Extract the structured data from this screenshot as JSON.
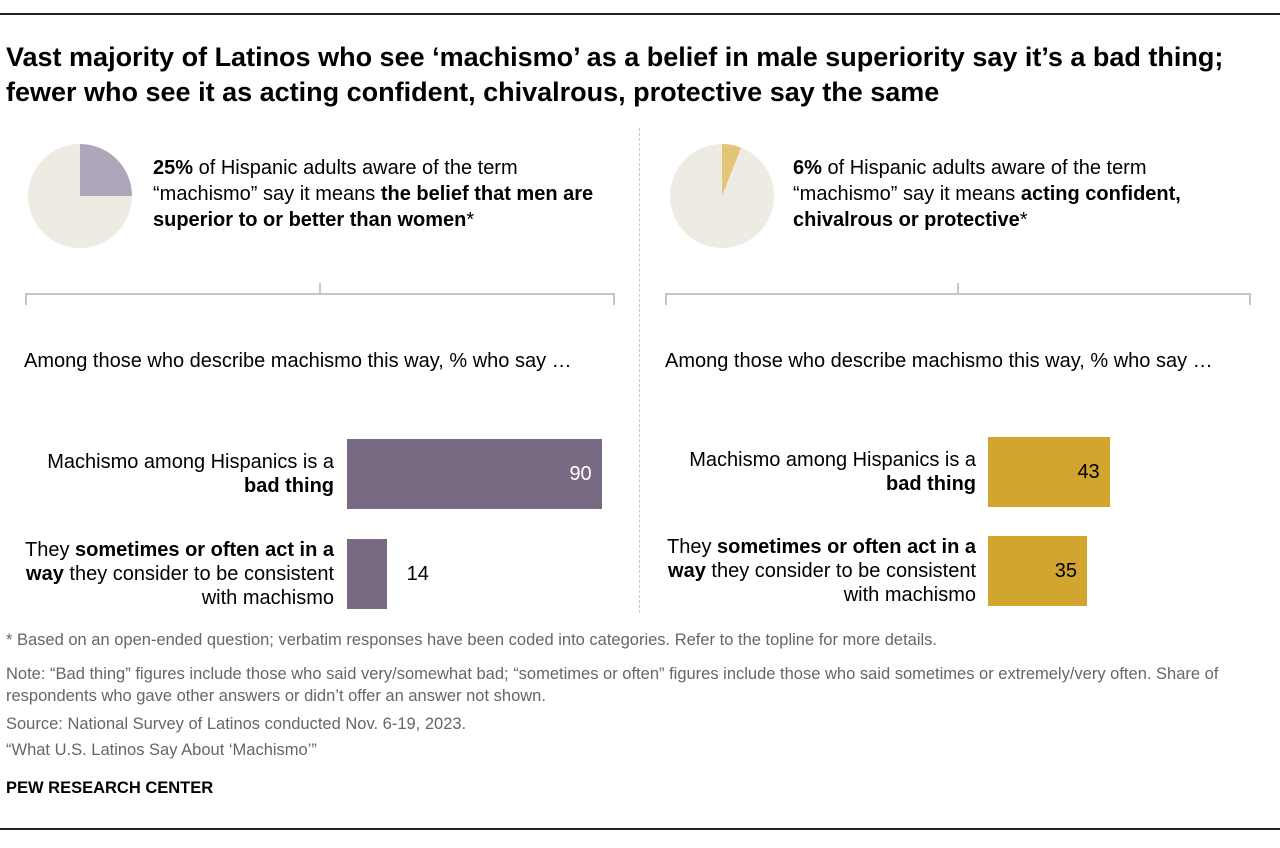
{
  "title": "Vast majority of Latinos who see ‘machismo’ as a belief in male superiority say it’s a bad thing; fewer who see it as acting confident, chivalrous, protective say the same",
  "colors": {
    "purple": "#786a82",
    "purple_light": "#b0a6bb",
    "gold": "#d1a52e",
    "gold_light": "#e2c577",
    "pie_bg": "#eeebe3",
    "brace": "#c6c6c6"
  },
  "chart_data": [
    {
      "type": "pie",
      "values": [
        25,
        75
      ],
      "description": {
        "pct": "25%",
        "pre": " of Hispanic adults aware of the term “machismo” say it means ",
        "bold": "the belief that men are superior to or better than women",
        "post": "*"
      }
    },
    {
      "type": "pie",
      "values": [
        6,
        94
      ],
      "description": {
        "pct": "6%",
        "pre": " of Hispanic adults aware of the term “machismo” say it means ",
        "bold": "acting confident, chivalrous or protective",
        "post": "*"
      }
    },
    {
      "type": "bar",
      "orientation": "horizontal",
      "subtitle": "Among those who describe machismo this way, % who say …",
      "categories": [
        {
          "pre": "Machismo among Hispanics is a ",
          "bold": "bad thing",
          "post": ""
        },
        {
          "pre": "They ",
          "bold": "sometimes or often act in a way",
          "post": " they consider to be consistent with machismo"
        }
      ],
      "values": [
        90,
        14
      ],
      "value_labels": [
        "90",
        "14"
      ],
      "xlim": [
        0,
        100
      ],
      "color": "#786a82"
    },
    {
      "type": "bar",
      "orientation": "horizontal",
      "subtitle": "Among those who describe machismo this way, % who say …",
      "categories": [
        {
          "pre": "Machismo among Hispanics is a ",
          "bold": "bad thing",
          "post": ""
        },
        {
          "pre": "They ",
          "bold": "sometimes or often act in a way",
          "post": " they consider to be consistent with machismo"
        }
      ],
      "values": [
        43,
        35
      ],
      "value_labels": [
        "43",
        "35"
      ],
      "xlim": [
        0,
        100
      ],
      "color": "#d1a52e"
    }
  ],
  "footnotes": {
    "asterisk": "* Based on an open-ended question; verbatim responses have been coded into categories. Refer to the topline for more details.",
    "note": "Note: “Bad thing” figures include those who said very/somewhat bad; “sometimes or often” figures include those who said sometimes or extremely/very often. Share of respondents who gave other answers or didn’t offer an answer not shown.",
    "source": "Source: National Survey of Latinos conducted Nov. 6-19, 2023.",
    "report": "“What U.S. Latinos Say About ‘Machismo’”"
  },
  "brand": "PEW RESEARCH CENTER"
}
